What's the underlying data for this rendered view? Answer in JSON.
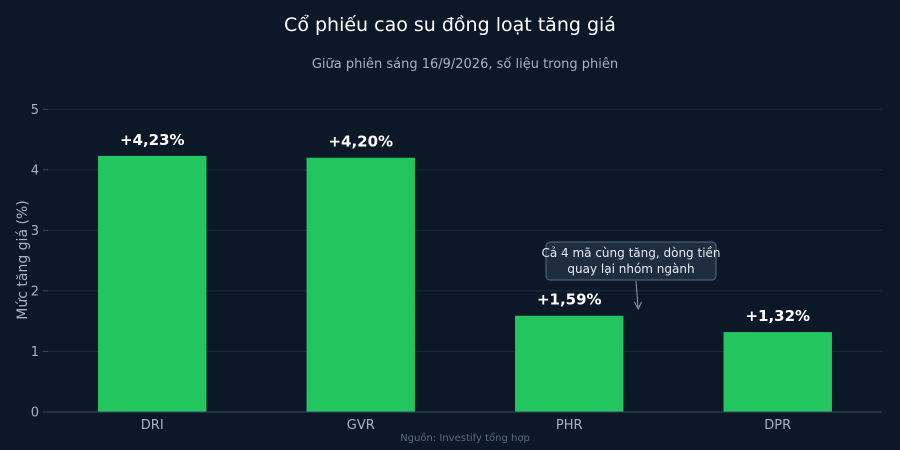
{
  "colors": {
    "background": "#0c1728",
    "bar": "#22c55e",
    "grid": "#1c2a3d",
    "axis_text": "#a7b3c4",
    "annotation_box": "#1f2d40",
    "annotation_border": "#5c6b80"
  },
  "chart_data": {
    "type": "bar",
    "title": "Cổ phiếu cao su đồng loạt tăng giá",
    "subtitle": "Giữa phiên sáng 16/9/2026, số liệu trong phiên",
    "xlabel": "",
    "ylabel": "Mức tăng giá (%)",
    "categories": [
      "DRI",
      "GVR",
      "PHR",
      "DPR"
    ],
    "values": [
      4.23,
      4.2,
      1.59,
      1.32
    ],
    "value_labels": [
      "+4,23%",
      "+4,20%",
      "+1,59%",
      "+1,32%"
    ],
    "ylim": [
      0,
      5.5
    ],
    "yticks": [
      "0",
      "1",
      "2",
      "3",
      "4",
      "5"
    ],
    "grid": true,
    "legend": "none",
    "annotation": {
      "target_category": "PHR",
      "lines": [
        "Cả 4 mã cùng tăng, dòng tiền",
        "quay lại nhóm ngành"
      ]
    },
    "source": "Nguồn: Investify tổng hợp"
  }
}
